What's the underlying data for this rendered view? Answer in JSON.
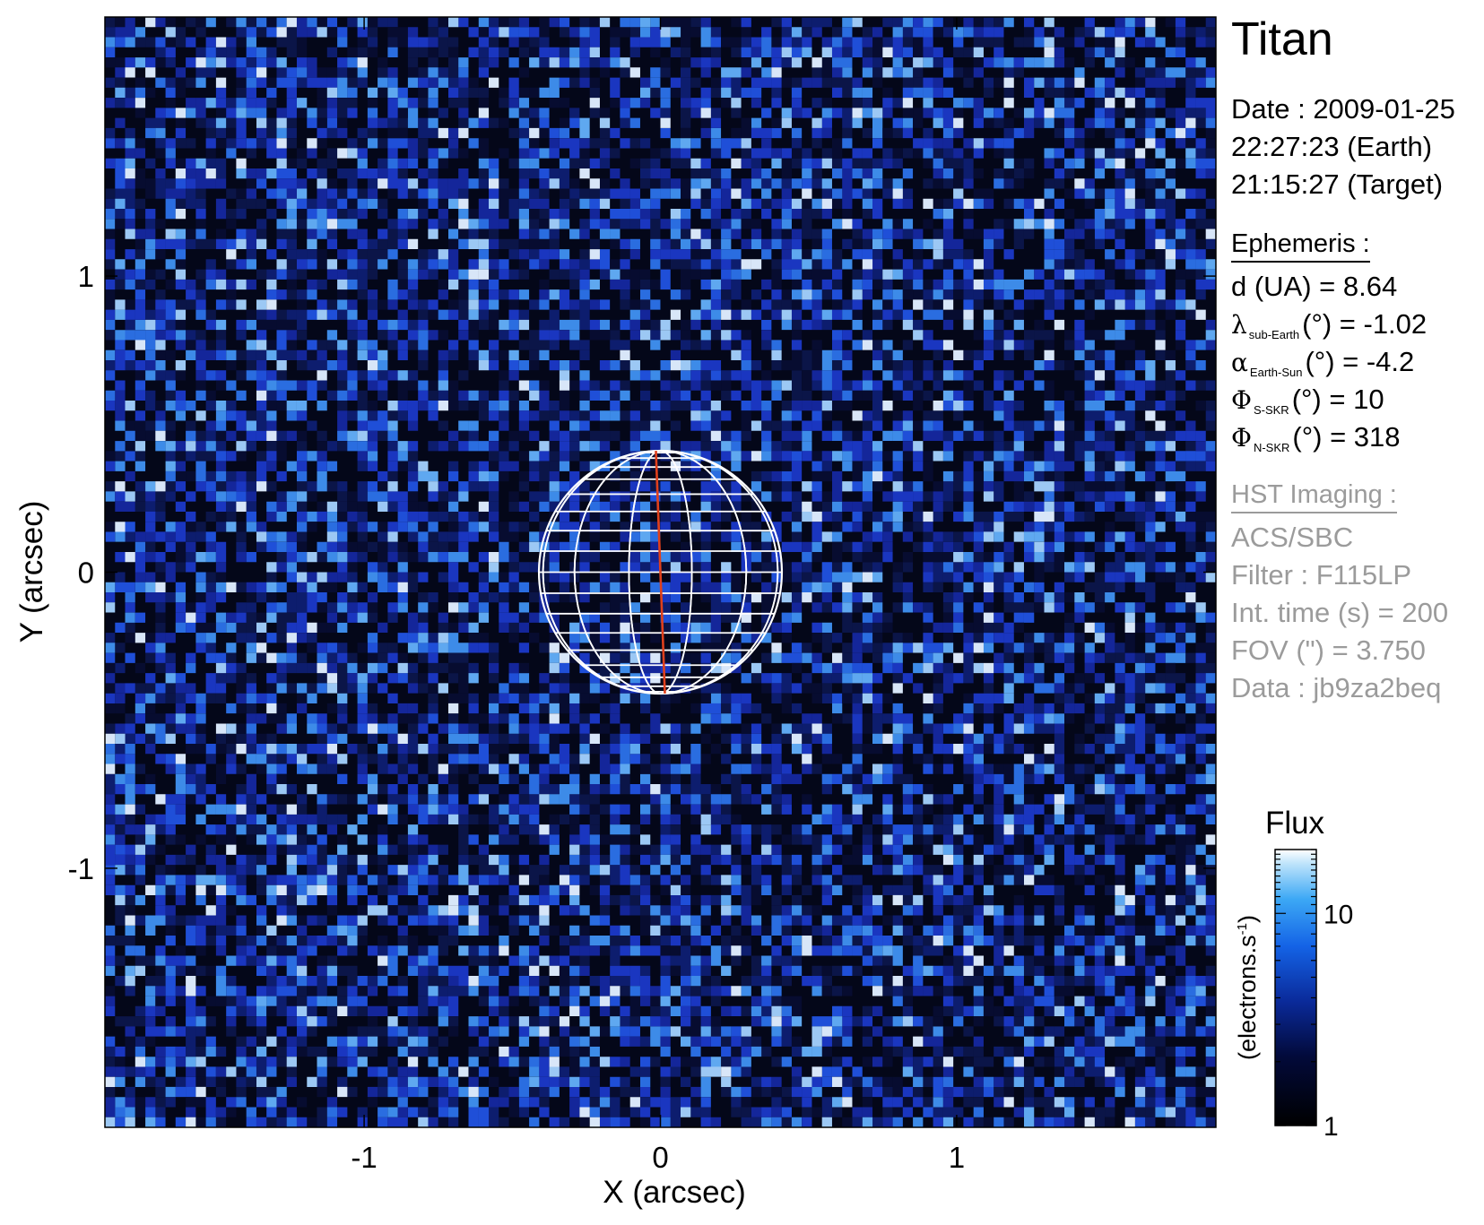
{
  "chart_data": {
    "type": "heatmap",
    "description_free": true,
    "xlabel": "X (arcsec)",
    "ylabel": "Y (arcsec)",
    "xlim": [
      -1.875,
      1.875
    ],
    "ylim": [
      -1.875,
      1.875
    ],
    "xticks": [
      -1,
      0,
      1
    ],
    "yticks": [
      -1,
      0,
      1
    ],
    "xtick_labels": [
      "-1",
      "0",
      "1"
    ],
    "ytick_labels": [
      "-1",
      "0",
      "1"
    ],
    "colorscale": "log",
    "colorbar": {
      "title": "Flux",
      "label": "(electrons.s",
      "label_exp": "-1",
      "label_end": ")",
      "range": [
        1,
        20
      ],
      "ticks": [
        1,
        10
      ],
      "tick_labels": [
        "1",
        "10"
      ]
    },
    "planet_disk": {
      "center": [
        0,
        0
      ],
      "radius_arcsec": 0.41
    }
  },
  "panel": {
    "title": "Titan",
    "date": "Date : 2009-01-25",
    "time_earth": "22:27:23 (Earth)",
    "time_target": "21:15:27 (Target)",
    "ephemeris_header": "Ephemeris :",
    "eph_d": "d (UA)    = 8.64",
    "eph_lambda_sym": "λ",
    "eph_lambda_sub": "sub-Earth",
    "eph_lambda_rest": "(°) = -1.02",
    "eph_alpha_sym": "α",
    "eph_alpha_sub": "Earth-Sun",
    "eph_alpha_rest": "(°) = -4.2",
    "eph_phis_sym": "Φ",
    "eph_phis_sub": "S-SKR",
    "eph_phis_rest": "(°)   = 10",
    "eph_phin_sym": "Φ",
    "eph_phin_sub": "N-SKR",
    "eph_phin_rest": "(°)   = 318",
    "hst_header": "HST Imaging :",
    "instrument": "ACS/SBC",
    "filter": "Filter : F115LP",
    "int_time": "Int. time (s) = 200",
    "fov": "FOV (\") = 3.750",
    "data_id": "Data : jb9za2beq"
  },
  "colors": {
    "grid_line": "#ffffff",
    "central_meridian": "#e0401c",
    "info_grey": "#9b9b9b",
    "cmap": [
      "#000000",
      "#020a3a",
      "#0a2a9a",
      "#1463e6",
      "#3ca8f5",
      "#bfe4fb",
      "#ffffff"
    ]
  }
}
